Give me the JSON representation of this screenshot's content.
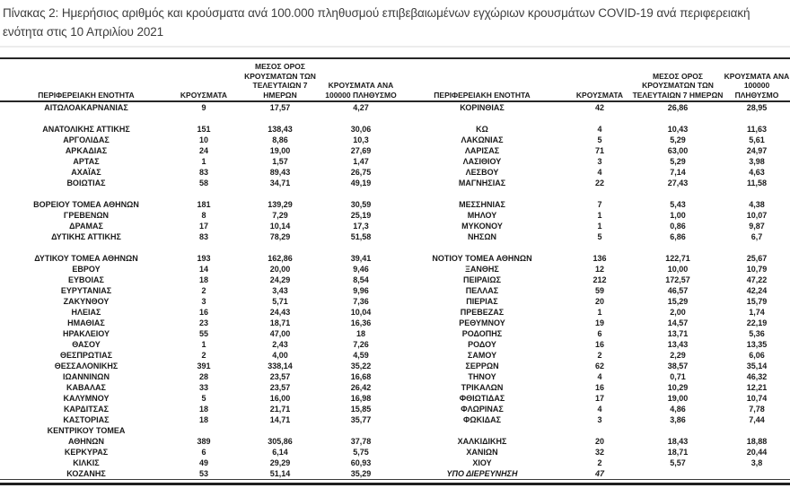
{
  "page": {
    "title": "Πίνακας 2:  Ημερήσιος αριθμός και κρούσματα ανά 100.000 πληθυσμού επιβεβαιωμένων εγχώριων κρουσμάτων COVID-19 ανά περιφερειακή ενότητα στις 10 Απριλίου 2021"
  },
  "colors": {
    "rule_dark": "#262626",
    "rule_light": "#ececec",
    "text": "#1a1a1a",
    "title_text": "#3d3d3d"
  },
  "table": {
    "headers": {
      "region": "ΠΕΡΙΦΕΡΕΙΑΚΗ ΕΝΟΤΗΤΑ",
      "cases": "ΚΡΟΥΣΜΑΤΑ",
      "avg7": "ΜΕΣΟΣ ΟΡΟΣ\nΚΡΟΥΣΜΑΤΩΝ ΤΩΝ\nΤΕΛΕΥΤΑΙΩΝ 7 ΗΜΕΡΩΝ",
      "per100k": "ΚΡΟΥΣΜΑΤΑ ΑΝΑ\n100000 ΠΛΗΘΥΣΜΟ"
    },
    "italic_cells": [
      [
        34,
        4
      ],
      [
        34,
        5
      ]
    ],
    "rows": [
      [
        "ΑΙΤΩΛΟΑΚΑΡΝΑΝΙΑΣ",
        "9",
        "17,57",
        "4,27",
        "ΚΟΡΙΝΘΙΑΣ",
        "42",
        "26,86",
        "28,95"
      ],
      [
        "",
        "",
        "",
        "",
        "",
        "",
        "",
        ""
      ],
      [
        "ΑΝΑΤΟΛΙΚΗΣ ΑΤΤΙΚΗΣ",
        "151",
        "138,43",
        "30,06",
        "ΚΩ",
        "4",
        "10,43",
        "11,63"
      ],
      [
        "ΑΡΓΟΛΙΔΑΣ",
        "10",
        "8,86",
        "10,3",
        "ΛΑΚΩΝΙΑΣ",
        "5",
        "5,29",
        "5,61"
      ],
      [
        "ΑΡΚΑΔΙΑΣ",
        "24",
        "19,00",
        "27,69",
        "ΛΑΡΙΣΑΣ",
        "71",
        "63,00",
        "24,97"
      ],
      [
        "ΑΡΤΑΣ",
        "1",
        "1,57",
        "1,47",
        "ΛΑΣΙΘΙΟΥ",
        "3",
        "5,29",
        "3,98"
      ],
      [
        "ΑΧΑΪΑΣ",
        "83",
        "89,43",
        "26,75",
        "ΛΕΣΒΟΥ",
        "4",
        "7,14",
        "4,63"
      ],
      [
        "ΒΟΙΩΤΙΑΣ",
        "58",
        "34,71",
        "49,19",
        "ΜΑΓΝΗΣΙΑΣ",
        "22",
        "27,43",
        "11,58"
      ],
      [
        "",
        "",
        "",
        "",
        "",
        "",
        "",
        ""
      ],
      [
        "ΒΟΡΕΙΟΥ ΤΟΜΕΑ ΑΘΗΝΩΝ",
        "181",
        "139,29",
        "30,59",
        "ΜΕΣΣΗΝΙΑΣ",
        "7",
        "5,43",
        "4,38"
      ],
      [
        "ΓΡΕΒΕΝΩΝ",
        "8",
        "7,29",
        "25,19",
        "ΜΗΛΟΥ",
        "1",
        "1,00",
        "10,07"
      ],
      [
        "ΔΡΑΜΑΣ",
        "17",
        "10,14",
        "17,3",
        "ΜΥΚΟΝΟΥ",
        "1",
        "0,86",
        "9,87"
      ],
      [
        "ΔΥΤΙΚΗΣ ΑΤΤΙΚΗΣ",
        "83",
        "78,29",
        "51,58",
        "ΝΗΣΩΝ",
        "5",
        "6,86",
        "6,7"
      ],
      [
        "",
        "",
        "",
        "",
        "",
        "",
        "",
        ""
      ],
      [
        "ΔΥΤΙΚΟΥ ΤΟΜΕΑ ΑΘΗΝΩΝ",
        "193",
        "162,86",
        "39,41",
        "ΝΟΤΙΟΥ ΤΟΜΕΑ ΑΘΗΝΩΝ",
        "136",
        "122,71",
        "25,67"
      ],
      [
        "ΕΒΡΟΥ",
        "14",
        "20,00",
        "9,46",
        "ΞΑΝΘΗΣ",
        "12",
        "10,00",
        "10,79"
      ],
      [
        "ΕΥΒΟΙΑΣ",
        "18",
        "24,29",
        "8,54",
        "ΠΕΙΡΑΙΩΣ",
        "212",
        "172,57",
        "47,22"
      ],
      [
        "ΕΥΡΥΤΑΝΙΑΣ",
        "2",
        "3,43",
        "9,96",
        "ΠΕΛΛΑΣ",
        "59",
        "46,57",
        "42,24"
      ],
      [
        "ΖΑΚΥΝΘΟΥ",
        "3",
        "5,71",
        "7,36",
        "ΠΙΕΡΙΑΣ",
        "20",
        "15,29",
        "15,79"
      ],
      [
        "ΗΛΕΙΑΣ",
        "16",
        "24,43",
        "10,04",
        "ΠΡΕΒΕΖΑΣ",
        "1",
        "2,00",
        "1,74"
      ],
      [
        "ΗΜΑΘΙΑΣ",
        "23",
        "18,71",
        "16,36",
        "ΡΕΘΥΜΝΟΥ",
        "19",
        "14,57",
        "22,19"
      ],
      [
        "ΗΡΑΚΛΕΙΟΥ",
        "55",
        "47,00",
        "18",
        "ΡΟΔΟΠΗΣ",
        "6",
        "13,71",
        "5,36"
      ],
      [
        "ΘΑΣΟΥ",
        "1",
        "2,43",
        "7,26",
        "ΡΟΔΟΥ",
        "16",
        "13,43",
        "13,35"
      ],
      [
        "ΘΕΣΠΡΩΤΙΑΣ",
        "2",
        "4,00",
        "4,59",
        "ΣΑΜΟΥ",
        "2",
        "2,29",
        "6,06"
      ],
      [
        "ΘΕΣΣΑΛΟΝΙΚΗΣ",
        "391",
        "338,14",
        "35,22",
        "ΣΕΡΡΩΝ",
        "62",
        "38,57",
        "35,14"
      ],
      [
        "ΙΩΑΝΝΙΝΩΝ",
        "28",
        "23,57",
        "16,68",
        "ΤΗΝΟΥ",
        "4",
        "0,71",
        "46,32"
      ],
      [
        "ΚΑΒΑΛΑΣ",
        "33",
        "23,57",
        "26,42",
        "ΤΡΙΚΑΛΩΝ",
        "16",
        "10,29",
        "12,21"
      ],
      [
        "ΚΑΛΥΜΝΟΥ",
        "5",
        "16,00",
        "16,98",
        "ΦΘΙΩΤΙΔΑΣ",
        "17",
        "19,00",
        "10,74"
      ],
      [
        "ΚΑΡΔΙΤΣΑΣ",
        "18",
        "21,71",
        "15,85",
        "ΦΛΩΡΙΝΑΣ",
        "4",
        "4,86",
        "7,78"
      ],
      [
        "ΚΑΣΤΟΡΙΑΣ",
        "18",
        "14,71",
        "35,77",
        "ΦΩΚΙΔΑΣ",
        "3",
        "3,86",
        "7,44"
      ],
      [
        "ΚΕΝΤΡΙΚΟΥ ΤΟΜΕΑ",
        "",
        "",
        "",
        "",
        "",
        "",
        ""
      ],
      [
        "ΑΘΗΝΩΝ",
        "389",
        "305,86",
        "37,78",
        "ΧΑΛΚΙΔΙΚΗΣ",
        "20",
        "18,43",
        "18,88"
      ],
      [
        "ΚΕΡΚΥΡΑΣ",
        "6",
        "6,14",
        "5,75",
        "ΧΑΝΙΩΝ",
        "32",
        "18,71",
        "20,44"
      ],
      [
        "ΚΙΛΚΙΣ",
        "49",
        "29,29",
        "60,93",
        "ΧΙΟΥ",
        "2",
        "5,57",
        "3,8"
      ],
      [
        "ΚΟΖΑΝΗΣ",
        "53",
        "51,14",
        "35,29",
        "ΥΠΟ ΔΙΕΡΕΥΝΗΣΗ",
        "47",
        "",
        ""
      ]
    ]
  }
}
